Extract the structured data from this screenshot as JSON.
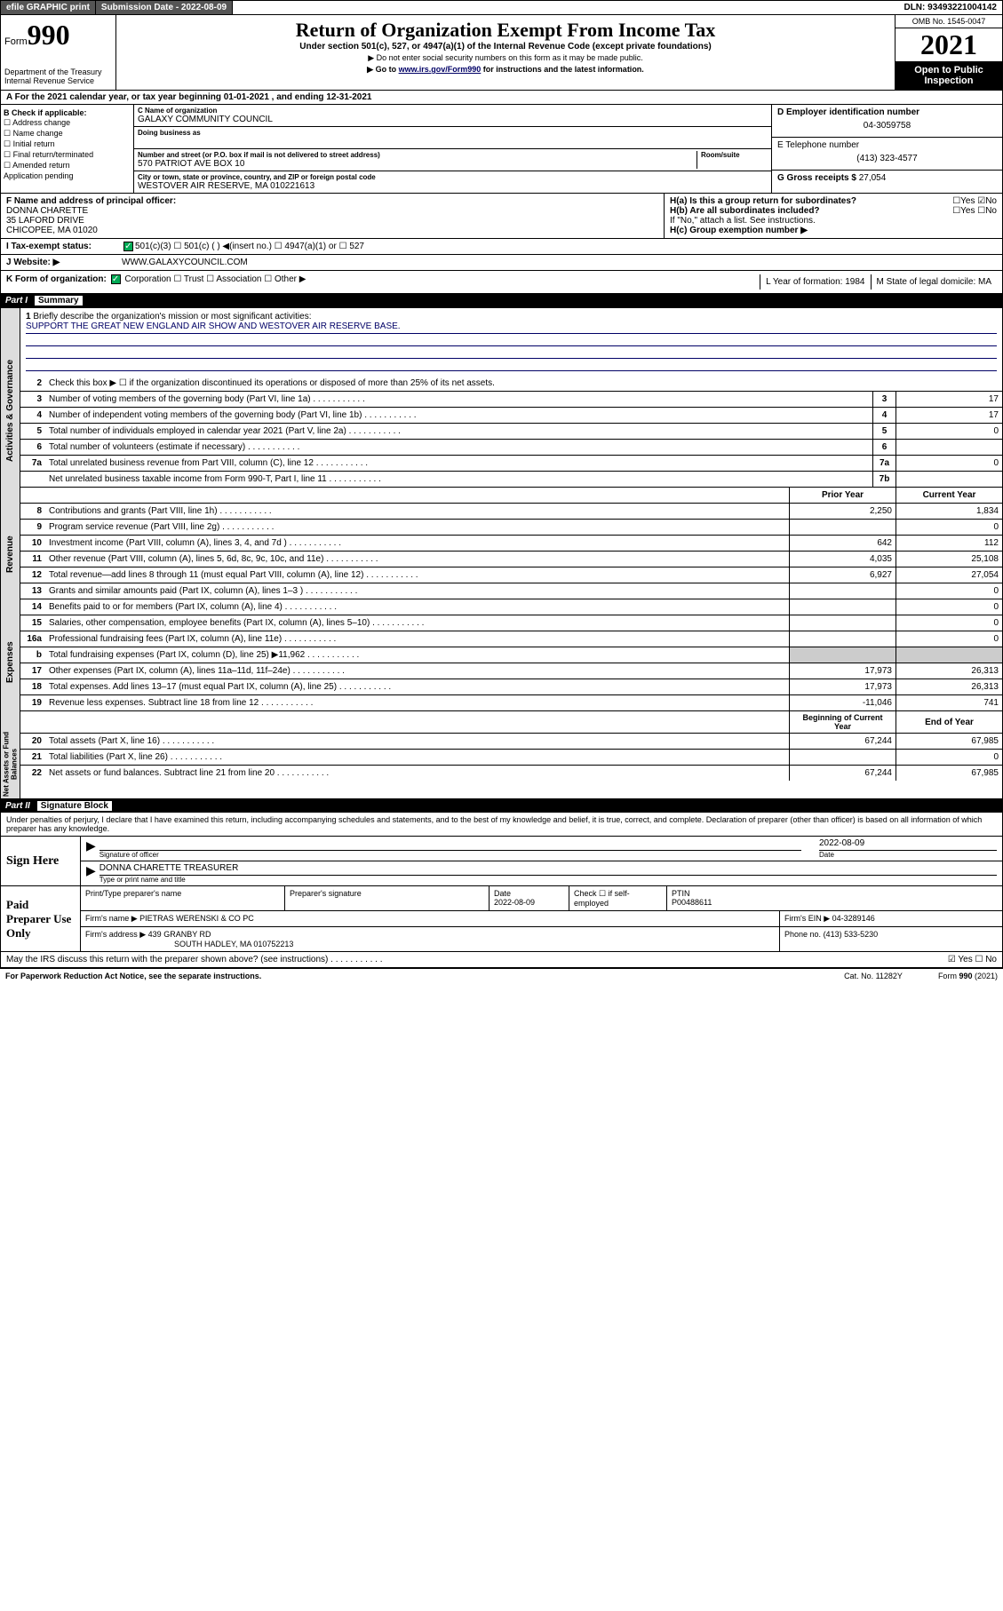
{
  "topbar": {
    "efile": "efile GRAPHIC print",
    "sub_label": "Submission Date - 2022-08-09",
    "dln": "DLN: 93493221004142"
  },
  "header": {
    "form_prefix": "Form",
    "form_num": "990",
    "title": "Return of Organization Exempt From Income Tax",
    "subtitle": "Under section 501(c), 527, or 4947(a)(1) of the Internal Revenue Code (except private foundations)",
    "note1": "▶ Do not enter social security numbers on this form as it may be made public.",
    "note2_pre": "▶ Go to ",
    "note2_link": "www.irs.gov/Form990",
    "note2_post": " for instructions and the latest information.",
    "omb": "OMB No. 1545-0047",
    "year": "2021",
    "open": "Open to Public Inspection",
    "dept": "Department of the Treasury Internal Revenue Service"
  },
  "row_a": "A For the 2021 calendar year, or tax year beginning 01-01-2021   , and ending 12-31-2021",
  "box_b": {
    "label": "B Check if applicable:",
    "items": [
      "☐ Address change",
      "☐ Name change",
      "☐ Initial return",
      "☐ Final return/terminated",
      "☐ Amended return",
      "Application pending"
    ]
  },
  "box_c": {
    "name_label": "C Name of organization",
    "name": "GALAXY COMMUNITY COUNCIL",
    "dba_label": "Doing business as",
    "addr_label": "Number and street (or P.O. box if mail is not delivered to street address)",
    "room_label": "Room/suite",
    "addr": "570 PATRIOT AVE BOX 10",
    "city_label": "City or town, state or province, country, and ZIP or foreign postal code",
    "city": "WESTOVER AIR RESERVE, MA  010221613"
  },
  "box_d": {
    "label": "D Employer identification number",
    "val": "04-3059758"
  },
  "box_e": {
    "label": "E Telephone number",
    "val": "(413) 323-4577"
  },
  "box_g": {
    "label": "G Gross receipts $",
    "val": "27,054"
  },
  "box_f": {
    "label": "F  Name and address of principal officer:",
    "name": "DONNA CHARETTE",
    "addr1": "35 LAFORD DRIVE",
    "addr2": "CHICOPEE, MA  01020"
  },
  "box_h": {
    "ha": "H(a)  Is this a group return for subordinates?",
    "ha_ans": "☐Yes ☑No",
    "hb": "H(b)  Are all subordinates included?",
    "hb_ans": "☐Yes ☐No",
    "hb_note": "If \"No,\" attach a list. See instructions.",
    "hc": "H(c)  Group exemption number ▶"
  },
  "row_i": {
    "label": "I    Tax-exempt status:",
    "opts": "501(c)(3)    ☐  501(c) (  ) ◀(insert no.)     ☐ 4947(a)(1) or  ☐ 527"
  },
  "row_j": {
    "label": "J    Website: ▶",
    "val": "WWW.GALAXYCOUNCIL.COM"
  },
  "row_k": {
    "label": "K Form of organization:",
    "opts": "Corporation  ☐ Trust  ☐ Association  ☐ Other ▶",
    "l": "L Year of formation: 1984",
    "m": "M State of legal domicile: MA"
  },
  "part1": {
    "hdr_part": "Part I",
    "hdr_title": "Summary",
    "q1": "Briefly describe the organization's mission or most significant activities:",
    "q1_val": "SUPPORT THE GREAT NEW ENGLAND AIR SHOW AND WESTOVER AIR RESERVE BASE.",
    "q2": "Check this box ▶ ☐  if the organization discontinued its operations or disposed of more than 25% of its net assets.",
    "lines_gov": [
      {
        "n": "3",
        "d": "Number of voting members of the governing body (Part VI, line 1a)",
        "b": "3",
        "v": "17"
      },
      {
        "n": "4",
        "d": "Number of independent voting members of the governing body (Part VI, line 1b)",
        "b": "4",
        "v": "17"
      },
      {
        "n": "5",
        "d": "Total number of individuals employed in calendar year 2021 (Part V, line 2a)",
        "b": "5",
        "v": "0"
      },
      {
        "n": "6",
        "d": "Total number of volunteers (estimate if necessary)",
        "b": "6",
        "v": ""
      },
      {
        "n": "7a",
        "d": "Total unrelated business revenue from Part VIII, column (C), line 12",
        "b": "7a",
        "v": "0"
      },
      {
        "n": "",
        "d": "Net unrelated business taxable income from Form 990-T, Part I, line 11",
        "b": "7b",
        "v": ""
      }
    ],
    "col_prior": "Prior Year",
    "col_curr": "Current Year",
    "lines_rev": [
      {
        "n": "8",
        "d": "Contributions and grants (Part VIII, line 1h)",
        "p": "2,250",
        "c": "1,834"
      },
      {
        "n": "9",
        "d": "Program service revenue (Part VIII, line 2g)",
        "p": "",
        "c": "0"
      },
      {
        "n": "10",
        "d": "Investment income (Part VIII, column (A), lines 3, 4, and 7d )",
        "p": "642",
        "c": "112"
      },
      {
        "n": "11",
        "d": "Other revenue (Part VIII, column (A), lines 5, 6d, 8c, 9c, 10c, and 11e)",
        "p": "4,035",
        "c": "25,108"
      },
      {
        "n": "12",
        "d": "Total revenue—add lines 8 through 11 (must equal Part VIII, column (A), line 12)",
        "p": "6,927",
        "c": "27,054"
      }
    ],
    "lines_exp": [
      {
        "n": "13",
        "d": "Grants and similar amounts paid (Part IX, column (A), lines 1–3 )",
        "p": "",
        "c": "0"
      },
      {
        "n": "14",
        "d": "Benefits paid to or for members (Part IX, column (A), line 4)",
        "p": "",
        "c": "0"
      },
      {
        "n": "15",
        "d": "Salaries, other compensation, employee benefits (Part IX, column (A), lines 5–10)",
        "p": "",
        "c": "0"
      },
      {
        "n": "16a",
        "d": "Professional fundraising fees (Part IX, column (A), line 11e)",
        "p": "",
        "c": "0"
      },
      {
        "n": "b",
        "d": "Total fundraising expenses (Part IX, column (D), line 25) ▶11,962",
        "p": "shade",
        "c": "shade"
      },
      {
        "n": "17",
        "d": "Other expenses (Part IX, column (A), lines 11a–11d, 11f–24e)",
        "p": "17,973",
        "c": "26,313"
      },
      {
        "n": "18",
        "d": "Total expenses. Add lines 13–17 (must equal Part IX, column (A), line 25)",
        "p": "17,973",
        "c": "26,313"
      },
      {
        "n": "19",
        "d": "Revenue less expenses. Subtract line 18 from line 12",
        "p": "-11,046",
        "c": "741"
      }
    ],
    "col_beg": "Beginning of Current Year",
    "col_end": "End of Year",
    "lines_net": [
      {
        "n": "20",
        "d": "Total assets (Part X, line 16)",
        "p": "67,244",
        "c": "67,985"
      },
      {
        "n": "21",
        "d": "Total liabilities (Part X, line 26)",
        "p": "",
        "c": "0"
      },
      {
        "n": "22",
        "d": "Net assets or fund balances. Subtract line 21 from line 20",
        "p": "67,244",
        "c": "67,985"
      }
    ],
    "vtabs": [
      "Activities & Governance",
      "Revenue",
      "Expenses",
      "Net Assets or Fund Balances"
    ]
  },
  "part2": {
    "hdr_part": "Part II",
    "hdr_title": "Signature Block",
    "intro": "Under penalties of perjury, I declare that I have examined this return, including accompanying schedules and statements, and to the best of my knowledge and belief, it is true, correct, and complete. Declaration of preparer (other than officer) is based on all information of which preparer has any knowledge.",
    "sign_here": "Sign Here",
    "sig_officer": "Signature of officer",
    "sig_date": "2022-08-09",
    "date_lbl": "Date",
    "officer_name": "DONNA CHARETTE  TREASURER",
    "name_lbl": "Type or print name and title",
    "paid": "Paid Preparer Use Only",
    "prep_name_lbl": "Print/Type preparer's name",
    "prep_sig_lbl": "Preparer's signature",
    "prep_date_lbl": "Date",
    "prep_date": "2022-08-09",
    "check_self": "Check ☐ if self-employed",
    "ptin_lbl": "PTIN",
    "ptin": "P00488611",
    "firm_name_lbl": "Firm's name    ▶",
    "firm_name": "PIETRAS WERENSKI & CO PC",
    "firm_ein_lbl": "Firm's EIN ▶",
    "firm_ein": "04-3289146",
    "firm_addr_lbl": "Firm's address ▶",
    "firm_addr1": "439 GRANBY RD",
    "firm_addr2": "SOUTH HADLEY, MA  010752213",
    "phone_lbl": "Phone no.",
    "phone": "(413) 533-5230",
    "discuss": "May the IRS discuss this return with the preparer shown above? (see instructions)",
    "discuss_ans": "☑ Yes  ☐ No"
  },
  "footer": {
    "left": "For Paperwork Reduction Act Notice, see the separate instructions.",
    "mid": "Cat. No. 11282Y",
    "right": "Form 990 (2021)"
  }
}
